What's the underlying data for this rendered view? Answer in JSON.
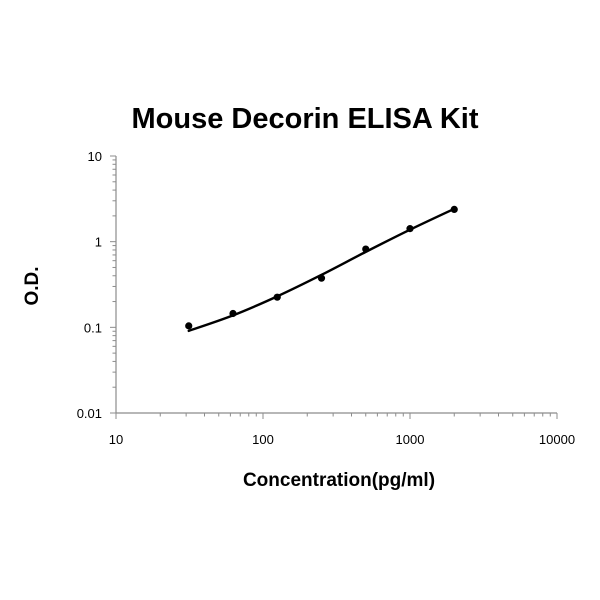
{
  "chart_data": {
    "type": "scatter",
    "title": "Mouse Decorin ELISA Kit",
    "xlabel": "Concentration(pg/ml)",
    "ylabel": "O.D.",
    "x_scale": "log",
    "y_scale": "log",
    "xlim": [
      10,
      10000
    ],
    "ylim": [
      0.01,
      10
    ],
    "x_ticks": [
      "10",
      "100",
      "1000",
      "10000"
    ],
    "y_ticks": [
      "0.01",
      "0.1",
      "1",
      "10"
    ],
    "grid": false,
    "legend": "none",
    "series": [
      {
        "points": [
          {
            "x": 31.25,
            "y": 0.104
          },
          {
            "x": 62.5,
            "y": 0.145
          },
          {
            "x": 125,
            "y": 0.225
          },
          {
            "x": 250,
            "y": 0.375
          },
          {
            "x": 500,
            "y": 0.82
          },
          {
            "x": 1000,
            "y": 1.42
          },
          {
            "x": 2000,
            "y": 2.38
          }
        ],
        "fit_curve": [
          {
            "x": 31.25,
            "y": 0.091
          },
          {
            "x": 62.5,
            "y": 0.138
          },
          {
            "x": 125,
            "y": 0.23
          },
          {
            "x": 250,
            "y": 0.41
          },
          {
            "x": 500,
            "y": 0.76
          },
          {
            "x": 1000,
            "y": 1.38
          },
          {
            "x": 2000,
            "y": 2.42
          }
        ]
      }
    ],
    "colors": {
      "marker": "#000000",
      "curve": "#000000",
      "axis": "#8c8c8c"
    }
  }
}
